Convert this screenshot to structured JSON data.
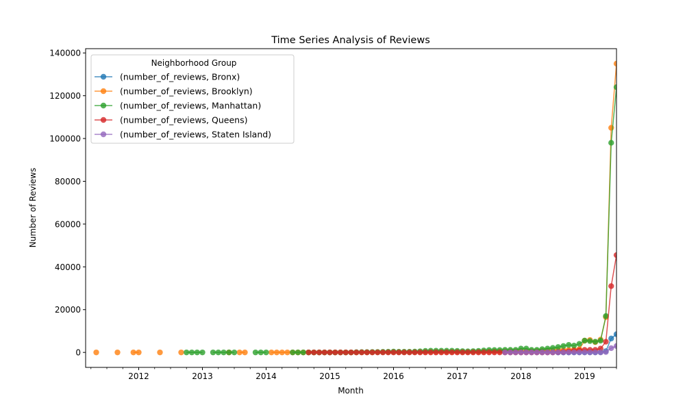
{
  "chart_data": {
    "type": "line",
    "title": "Time Series Analysis of Reviews",
    "xlabel": "Month",
    "ylabel": "Number of Reviews",
    "legend_title": "Neighborhood Group",
    "legend_position": "top-left",
    "grid": false,
    "x_range": [
      "2011-03",
      "2019-07"
    ],
    "ylim": [
      -7000,
      142000
    ],
    "x_ticks": [
      {
        "date": "2012-01",
        "label": "2012"
      },
      {
        "date": "2013-01",
        "label": "2013"
      },
      {
        "date": "2014-01",
        "label": "2014"
      },
      {
        "date": "2015-01",
        "label": "2015"
      },
      {
        "date": "2016-01",
        "label": "2016"
      },
      {
        "date": "2017-01",
        "label": "2017"
      },
      {
        "date": "2018-01",
        "label": "2018"
      },
      {
        "date": "2019-01",
        "label": "2019"
      }
    ],
    "y_ticks": [
      {
        "value": 0,
        "label": "0"
      },
      {
        "value": 20000,
        "label": "20000"
      },
      {
        "value": 40000,
        "label": "40000"
      },
      {
        "value": 60000,
        "label": "60000"
      },
      {
        "value": 80000,
        "label": "80000"
      },
      {
        "value": 100000,
        "label": "100000"
      },
      {
        "value": 120000,
        "label": "120000"
      },
      {
        "value": 140000,
        "label": "140000"
      }
    ],
    "series": [
      {
        "name": "(number_of_reviews, Bronx)",
        "color": "#1f77b4",
        "points": [
          {
            "x": "2018-08",
            "y": 0
          },
          {
            "x": "2018-09",
            "y": 0
          },
          {
            "x": "2018-10",
            "y": 10
          },
          {
            "x": "2018-11",
            "y": 20
          },
          {
            "x": "2018-12",
            "y": 20
          },
          {
            "x": "2019-01",
            "y": 50
          },
          {
            "x": "2019-02",
            "y": 50
          },
          {
            "x": "2019-03",
            "y": 50
          },
          {
            "x": "2019-04",
            "y": 100
          },
          {
            "x": "2019-05",
            "y": 600
          },
          {
            "x": "2019-06",
            "y": 6500
          },
          {
            "x": "2019-07",
            "y": 8500
          }
        ]
      },
      {
        "name": "(number_of_reviews, Brooklyn)",
        "color": "#ff7f0e",
        "points": [
          {
            "x": "2011-05",
            "y": 0
          },
          {
            "x": "2011-09",
            "y": 0
          },
          {
            "x": "2011-12",
            "y": 0
          },
          {
            "x": "2012-01",
            "y": 0
          },
          {
            "x": "2012-05",
            "y": 0
          },
          {
            "x": "2012-09",
            "y": 0
          },
          {
            "x": "2013-06",
            "y": 0
          },
          {
            "x": "2013-08",
            "y": 0
          },
          {
            "x": "2013-09",
            "y": 0
          },
          {
            "x": "2014-02",
            "y": 0
          },
          {
            "x": "2014-03",
            "y": 0
          },
          {
            "x": "2014-04",
            "y": 0
          },
          {
            "x": "2014-05",
            "y": 0
          },
          {
            "x": "2014-06",
            "y": 0
          },
          {
            "x": "2014-07",
            "y": 0
          },
          {
            "x": "2014-08",
            "y": 0
          },
          {
            "x": "2014-09",
            "y": 0
          },
          {
            "x": "2014-10",
            "y": 0
          },
          {
            "x": "2014-11",
            "y": 0
          },
          {
            "x": "2014-12",
            "y": 0
          },
          {
            "x": "2015-01",
            "y": 0
          },
          {
            "x": "2015-02",
            "y": 0
          },
          {
            "x": "2015-03",
            "y": 0
          },
          {
            "x": "2015-04",
            "y": 0
          },
          {
            "x": "2015-05",
            "y": 0
          },
          {
            "x": "2015-06",
            "y": 0
          },
          {
            "x": "2015-07",
            "y": 50
          },
          {
            "x": "2015-08",
            "y": 50
          },
          {
            "x": "2015-09",
            "y": 50
          },
          {
            "x": "2015-10",
            "y": 100
          },
          {
            "x": "2015-11",
            "y": 100
          },
          {
            "x": "2015-12",
            "y": 100
          },
          {
            "x": "2016-01",
            "y": 150
          },
          {
            "x": "2016-02",
            "y": 100
          },
          {
            "x": "2016-03",
            "y": 100
          },
          {
            "x": "2016-04",
            "y": 100
          },
          {
            "x": "2016-05",
            "y": 100
          },
          {
            "x": "2016-06",
            "y": 150
          },
          {
            "x": "2016-07",
            "y": 150
          },
          {
            "x": "2016-08",
            "y": 200
          },
          {
            "x": "2016-09",
            "y": 200
          },
          {
            "x": "2016-10",
            "y": 200
          },
          {
            "x": "2016-11",
            "y": 200
          },
          {
            "x": "2016-12",
            "y": 200
          },
          {
            "x": "2017-01",
            "y": 200
          },
          {
            "x": "2017-02",
            "y": 150
          },
          {
            "x": "2017-03",
            "y": 150
          },
          {
            "x": "2017-04",
            "y": 200
          },
          {
            "x": "2017-05",
            "y": 250
          },
          {
            "x": "2017-06",
            "y": 300
          },
          {
            "x": "2017-07",
            "y": 350
          },
          {
            "x": "2017-08",
            "y": 400
          },
          {
            "x": "2017-09",
            "y": 400
          },
          {
            "x": "2017-10",
            "y": 450
          },
          {
            "x": "2017-11",
            "y": 500
          },
          {
            "x": "2017-12",
            "y": 500
          },
          {
            "x": "2018-01",
            "y": 600
          },
          {
            "x": "2018-02",
            "y": 500
          },
          {
            "x": "2018-03",
            "y": 500
          },
          {
            "x": "2018-04",
            "y": 600
          },
          {
            "x": "2018-05",
            "y": 700
          },
          {
            "x": "2018-06",
            "y": 800
          },
          {
            "x": "2018-07",
            "y": 900
          },
          {
            "x": "2018-08",
            "y": 1000
          },
          {
            "x": "2018-09",
            "y": 1100
          },
          {
            "x": "2018-10",
            "y": 1200
          },
          {
            "x": "2018-11",
            "y": 1300
          },
          {
            "x": "2018-12",
            "y": 1500
          },
          {
            "x": "2019-01",
            "y": 5500
          },
          {
            "x": "2019-02",
            "y": 5800
          },
          {
            "x": "2019-03",
            "y": 4800
          },
          {
            "x": "2019-04",
            "y": 6000
          },
          {
            "x": "2019-05",
            "y": 16500
          },
          {
            "x": "2019-06",
            "y": 105000
          },
          {
            "x": "2019-07",
            "y": 135000
          }
        ]
      },
      {
        "name": "(number_of_reviews, Manhattan)",
        "color": "#2ca02c",
        "points": [
          {
            "x": "2012-10",
            "y": 0
          },
          {
            "x": "2012-11",
            "y": 0
          },
          {
            "x": "2012-12",
            "y": 0
          },
          {
            "x": "2013-01",
            "y": 0
          },
          {
            "x": "2013-03",
            "y": 0
          },
          {
            "x": "2013-04",
            "y": 0
          },
          {
            "x": "2013-05",
            "y": 0
          },
          {
            "x": "2013-06",
            "y": 0
          },
          {
            "x": "2013-07",
            "y": 0
          },
          {
            "x": "2013-11",
            "y": 0
          },
          {
            "x": "2013-12",
            "y": 0
          },
          {
            "x": "2014-01",
            "y": 0
          },
          {
            "x": "2014-06",
            "y": 0
          },
          {
            "x": "2014-07",
            "y": 0
          },
          {
            "x": "2014-08",
            "y": 0
          },
          {
            "x": "2014-09",
            "y": 0
          },
          {
            "x": "2014-10",
            "y": 0
          },
          {
            "x": "2014-11",
            "y": 0
          },
          {
            "x": "2014-12",
            "y": 0
          },
          {
            "x": "2015-01",
            "y": 0
          },
          {
            "x": "2015-02",
            "y": 0
          },
          {
            "x": "2015-03",
            "y": 0
          },
          {
            "x": "2015-04",
            "y": 0
          },
          {
            "x": "2015-05",
            "y": 0
          },
          {
            "x": "2015-06",
            "y": 100
          },
          {
            "x": "2015-07",
            "y": 150
          },
          {
            "x": "2015-08",
            "y": 150
          },
          {
            "x": "2015-09",
            "y": 200
          },
          {
            "x": "2015-10",
            "y": 200
          },
          {
            "x": "2015-11",
            "y": 250
          },
          {
            "x": "2015-12",
            "y": 300
          },
          {
            "x": "2016-01",
            "y": 400
          },
          {
            "x": "2016-02",
            "y": 300
          },
          {
            "x": "2016-03",
            "y": 300
          },
          {
            "x": "2016-04",
            "y": 300
          },
          {
            "x": "2016-05",
            "y": 400
          },
          {
            "x": "2016-06",
            "y": 500
          },
          {
            "x": "2016-07",
            "y": 700
          },
          {
            "x": "2016-08",
            "y": 800
          },
          {
            "x": "2016-09",
            "y": 800
          },
          {
            "x": "2016-10",
            "y": 800
          },
          {
            "x": "2016-11",
            "y": 800
          },
          {
            "x": "2016-12",
            "y": 800
          },
          {
            "x": "2017-01",
            "y": 700
          },
          {
            "x": "2017-02",
            "y": 600
          },
          {
            "x": "2017-03",
            "y": 500
          },
          {
            "x": "2017-04",
            "y": 600
          },
          {
            "x": "2017-05",
            "y": 700
          },
          {
            "x": "2017-06",
            "y": 900
          },
          {
            "x": "2017-07",
            "y": 1100
          },
          {
            "x": "2017-08",
            "y": 1100
          },
          {
            "x": "2017-09",
            "y": 1100
          },
          {
            "x": "2017-10",
            "y": 1200
          },
          {
            "x": "2017-11",
            "y": 1200
          },
          {
            "x": "2017-12",
            "y": 1200
          },
          {
            "x": "2018-01",
            "y": 1800
          },
          {
            "x": "2018-02",
            "y": 1800
          },
          {
            "x": "2018-03",
            "y": 1200
          },
          {
            "x": "2018-04",
            "y": 1200
          },
          {
            "x": "2018-05",
            "y": 1500
          },
          {
            "x": "2018-06",
            "y": 1800
          },
          {
            "x": "2018-07",
            "y": 2100
          },
          {
            "x": "2018-08",
            "y": 2500
          },
          {
            "x": "2018-09",
            "y": 3000
          },
          {
            "x": "2018-10",
            "y": 3500
          },
          {
            "x": "2018-11",
            "y": 3200
          },
          {
            "x": "2018-12",
            "y": 4000
          },
          {
            "x": "2019-01",
            "y": 5500
          },
          {
            "x": "2019-02",
            "y": 5300
          },
          {
            "x": "2019-03",
            "y": 5000
          },
          {
            "x": "2019-04",
            "y": 5500
          },
          {
            "x": "2019-05",
            "y": 17000
          },
          {
            "x": "2019-06",
            "y": 98000
          },
          {
            "x": "2019-07",
            "y": 124000
          }
        ]
      },
      {
        "name": "(number_of_reviews, Queens)",
        "color": "#d62728",
        "points": [
          {
            "x": "2014-09",
            "y": 0
          },
          {
            "x": "2014-10",
            "y": 0
          },
          {
            "x": "2014-11",
            "y": 0
          },
          {
            "x": "2014-12",
            "y": 0
          },
          {
            "x": "2015-01",
            "y": 0
          },
          {
            "x": "2015-02",
            "y": 0
          },
          {
            "x": "2015-03",
            "y": 0
          },
          {
            "x": "2015-04",
            "y": 0
          },
          {
            "x": "2015-05",
            "y": 0
          },
          {
            "x": "2015-06",
            "y": 0
          },
          {
            "x": "2015-07",
            "y": 0
          },
          {
            "x": "2015-08",
            "y": 0
          },
          {
            "x": "2015-09",
            "y": 0
          },
          {
            "x": "2015-10",
            "y": 0
          },
          {
            "x": "2015-11",
            "y": 0
          },
          {
            "x": "2015-12",
            "y": 0
          },
          {
            "x": "2016-01",
            "y": 0
          },
          {
            "x": "2016-02",
            "y": 0
          },
          {
            "x": "2016-03",
            "y": 0
          },
          {
            "x": "2016-04",
            "y": 0
          },
          {
            "x": "2016-05",
            "y": 0
          },
          {
            "x": "2016-06",
            "y": 0
          },
          {
            "x": "2016-07",
            "y": 0
          },
          {
            "x": "2016-08",
            "y": 0
          },
          {
            "x": "2016-09",
            "y": 0
          },
          {
            "x": "2016-10",
            "y": 0
          },
          {
            "x": "2016-11",
            "y": 0
          },
          {
            "x": "2016-12",
            "y": 0
          },
          {
            "x": "2017-01",
            "y": 0
          },
          {
            "x": "2017-02",
            "y": 0
          },
          {
            "x": "2017-03",
            "y": 0
          },
          {
            "x": "2017-04",
            "y": 0
          },
          {
            "x": "2017-05",
            "y": 0
          },
          {
            "x": "2017-06",
            "y": 0
          },
          {
            "x": "2017-07",
            "y": 0
          },
          {
            "x": "2017-08",
            "y": 0
          },
          {
            "x": "2017-09",
            "y": 0
          },
          {
            "x": "2017-10",
            "y": 0
          },
          {
            "x": "2017-11",
            "y": 0
          },
          {
            "x": "2017-12",
            "y": 0
          },
          {
            "x": "2018-01",
            "y": 0
          },
          {
            "x": "2018-02",
            "y": 0
          },
          {
            "x": "2018-03",
            "y": 0
          },
          {
            "x": "2018-04",
            "y": 0
          },
          {
            "x": "2018-05",
            "y": 0
          },
          {
            "x": "2018-06",
            "y": 0
          },
          {
            "x": "2018-07",
            "y": 0
          },
          {
            "x": "2018-08",
            "y": 100
          },
          {
            "x": "2018-09",
            "y": 300
          },
          {
            "x": "2018-10",
            "y": 500
          },
          {
            "x": "2018-11",
            "y": 800
          },
          {
            "x": "2018-12",
            "y": 1000
          },
          {
            "x": "2019-01",
            "y": 1200
          },
          {
            "x": "2019-02",
            "y": 1200
          },
          {
            "x": "2019-03",
            "y": 1200
          },
          {
            "x": "2019-04",
            "y": 1800
          },
          {
            "x": "2019-05",
            "y": 5000
          },
          {
            "x": "2019-06",
            "y": 31000
          },
          {
            "x": "2019-07",
            "y": 45500
          }
        ]
      },
      {
        "name": "(number_of_reviews, Staten Island)",
        "color": "#9467bd",
        "points": [
          {
            "x": "2017-10",
            "y": 0
          },
          {
            "x": "2017-11",
            "y": 0
          },
          {
            "x": "2017-12",
            "y": 0
          },
          {
            "x": "2018-01",
            "y": 0
          },
          {
            "x": "2018-02",
            "y": 0
          },
          {
            "x": "2018-03",
            "y": 0
          },
          {
            "x": "2018-04",
            "y": 0
          },
          {
            "x": "2018-05",
            "y": 0
          },
          {
            "x": "2018-06",
            "y": 0
          },
          {
            "x": "2018-07",
            "y": 0
          },
          {
            "x": "2018-08",
            "y": 0
          },
          {
            "x": "2018-09",
            "y": 0
          },
          {
            "x": "2018-10",
            "y": 0
          },
          {
            "x": "2018-11",
            "y": 0
          },
          {
            "x": "2018-12",
            "y": 0
          },
          {
            "x": "2019-01",
            "y": 0
          },
          {
            "x": "2019-02",
            "y": 0
          },
          {
            "x": "2019-03",
            "y": 0
          },
          {
            "x": "2019-04",
            "y": 0
          },
          {
            "x": "2019-05",
            "y": 200
          },
          {
            "x": "2019-06",
            "y": 2000
          },
          {
            "x": "2019-07",
            "y": 3000
          }
        ]
      }
    ]
  }
}
